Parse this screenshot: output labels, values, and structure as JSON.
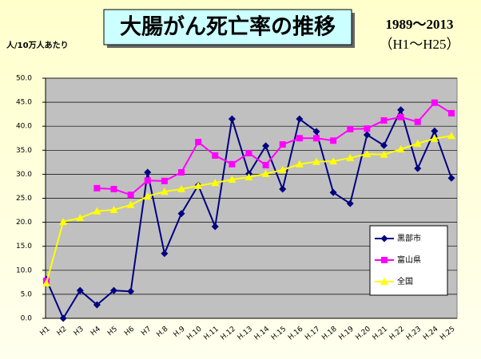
{
  "chart_data": {
    "type": "line",
    "title": "大腸がん死亡率の推移",
    "subtitle": [
      "1989～2013",
      "（H1～H25）"
    ],
    "y_label": "人/10万人あたり",
    "categories": [
      "H1",
      "H2",
      "H3",
      "H4",
      "H5",
      "H6",
      "H7",
      "H.8",
      "H.9",
      "H.10",
      "H.11",
      "H.12",
      "H.13",
      "H.14",
      "H.15",
      "H.16",
      "H.17",
      "H.18",
      "H.19",
      "H.20",
      "H.21",
      "H.22",
      "H.23",
      "H.24",
      "H.25"
    ],
    "series": [
      {
        "name": "黒部市",
        "color": "#000080",
        "marker": "diamond",
        "values": [
          8.1,
          0,
          5.8,
          2.8,
          5.8,
          5.6,
          30.4,
          13.5,
          21.8,
          27.7,
          19.1,
          41.5,
          30.1,
          35.9,
          26.9,
          41.5,
          38.9,
          26.2,
          23.9,
          38.2,
          36.0,
          43.4,
          31.2,
          39.0,
          29.2
        ]
      },
      {
        "name": "富山県",
        "color": "#ff00ff",
        "marker": "square",
        "values": [
          7.8,
          null,
          null,
          27.1,
          26.9,
          25.7,
          28.7,
          28.6,
          30.4,
          36.7,
          33.9,
          32.1,
          34.4,
          31.9,
          36.2,
          37.5,
          37.5,
          37.0,
          39.4,
          39.5,
          41.2,
          41.9,
          40.9,
          44.9,
          42.7
        ]
      },
      {
        "name": "全国",
        "color": "#ffff00",
        "marker": "triangle",
        "values": [
          7.3,
          20.1,
          20.9,
          22.3,
          22.6,
          23.6,
          25.4,
          26.4,
          26.9,
          27.6,
          28.2,
          28.9,
          29.4,
          30.1,
          30.9,
          32.1,
          32.6,
          32.7,
          33.4,
          34.2,
          34.1,
          35.2,
          36.4,
          37.4,
          38.0
        ]
      }
    ],
    "ylim": [
      0,
      50
    ],
    "yticks": [
      {
        "value": 0,
        "label": "0.0"
      },
      {
        "value": 5,
        "label": "5.0"
      },
      {
        "value": 10,
        "label": "10.0"
      },
      {
        "value": 15,
        "label": "15.0"
      },
      {
        "value": 20,
        "label": "20.0"
      },
      {
        "value": 25,
        "label": "25.0"
      },
      {
        "value": 30,
        "label": "30.0"
      },
      {
        "value": 35,
        "label": "35.0"
      },
      {
        "value": 40,
        "label": "40.0"
      },
      {
        "value": 45,
        "label": "45.0"
      },
      {
        "value": 50,
        "label": "50.0"
      }
    ],
    "grid": true,
    "legend": "right"
  }
}
